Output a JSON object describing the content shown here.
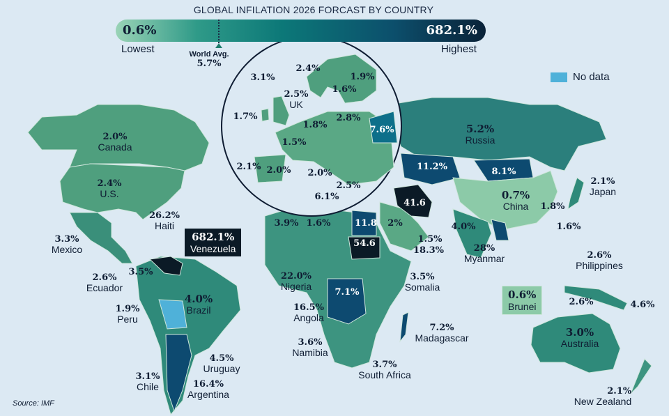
{
  "title": "GLOBAL INFILATION 2026 FORCAST BY COUNTRY",
  "scale": {
    "lowest_value": "0.6%",
    "lowest_label": "Lowest",
    "highest_value": "682.1%",
    "highest_label": "Highest",
    "world_avg_label": "World Avg.",
    "world_avg_value": "5.7%",
    "colors": [
      "#9ad3b6",
      "#0c7878",
      "#0a2238"
    ]
  },
  "legend": {
    "no_data_label": "No data",
    "no_data_color": "#4fb1d9"
  },
  "source": "Source: IMF",
  "americas": [
    {
      "value": "2.0%",
      "name": "Canada"
    },
    {
      "value": "2.4%",
      "name": "U.S."
    },
    {
      "value": "26.2%",
      "name": "Haiti"
    },
    {
      "value": "3.3%",
      "name": "Mexico"
    },
    {
      "value": "682.1%",
      "name": "Venezuela"
    },
    {
      "value": "3.5%"
    },
    {
      "value": "2.6%",
      "name": "Ecuador"
    },
    {
      "value": "1.9%",
      "name": "Peru"
    },
    {
      "value": "4.0%",
      "name": "Brazil"
    },
    {
      "value": "4.5%",
      "name": "Uruguay"
    },
    {
      "value": "3.1%",
      "name": "Chile"
    },
    {
      "value": "16.4%",
      "name": "Argentina"
    }
  ],
  "europe": [
    {
      "value": "3.1%"
    },
    {
      "value": "2.4%"
    },
    {
      "value": "1.9%"
    },
    {
      "value": "1.6%"
    },
    {
      "value": "2.5%",
      "name": "UK"
    },
    {
      "value": "1.7%"
    },
    {
      "value": "1.8%"
    },
    {
      "value": "2.8%"
    },
    {
      "value": "7.6%"
    },
    {
      "value": "1.5%"
    },
    {
      "value": "2.1%"
    },
    {
      "value": "2.0%"
    },
    {
      "value": "2.0%"
    },
    {
      "value": "2.5%"
    },
    {
      "value": "6.1%"
    }
  ],
  "africa_mideast": [
    {
      "value": "3.9%"
    },
    {
      "value": "1.6%"
    },
    {
      "value": "11.8"
    },
    {
      "value": "2%"
    },
    {
      "value": "41.6"
    },
    {
      "value": "54.6"
    },
    {
      "value": "1.5%"
    },
    {
      "value": "18.3%"
    },
    {
      "value": "22.0%",
      "name": "Nigeria"
    },
    {
      "value": "7.1%"
    },
    {
      "value": "3.5%",
      "name": "Somalia"
    },
    {
      "value": "16.5%",
      "name": "Angola"
    },
    {
      "value": "3.6%",
      "name": "Namibia"
    },
    {
      "value": "7.2%",
      "name": "Madagascar"
    },
    {
      "value": "3.7%",
      "name": "South Africa"
    }
  ],
  "asia_oceania": [
    {
      "value": "5.2%",
      "name": "Russia"
    },
    {
      "value": "11.2%"
    },
    {
      "value": "8.1%"
    },
    {
      "value": "0.7%",
      "name": "China"
    },
    {
      "value": "1.8%"
    },
    {
      "value": "2.1%",
      "name": "Japan"
    },
    {
      "value": "4.0%"
    },
    {
      "value": "1.6%"
    },
    {
      "value": "28%",
      "name": "Myanmar"
    },
    {
      "value": "2.6%",
      "name": "Philippines"
    },
    {
      "value": "0.6%",
      "name": "Brunei"
    },
    {
      "value": "2.6%"
    },
    {
      "value": "4.6%"
    },
    {
      "value": "3.0%",
      "name": "Australia"
    },
    {
      "value": "2.1%",
      "name": "New Zealand"
    }
  ]
}
